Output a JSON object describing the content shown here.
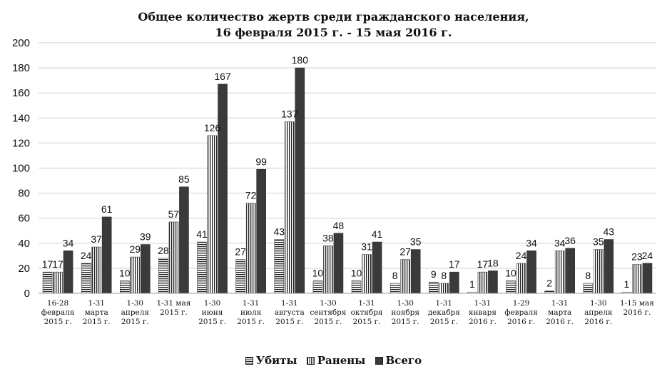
{
  "chart_data": {
    "type": "bar",
    "title_line1": "Общее количество жертв среди гражданского населения,",
    "title_line2": "16 февраля 2015 г. - 15 мая 2016 г.",
    "ylim": [
      0,
      200
    ],
    "yticks": [
      0,
      20,
      40,
      60,
      80,
      100,
      120,
      140,
      160,
      180,
      200
    ],
    "grid": true,
    "legend_position": "bottom",
    "categories": [
      [
        "16-28",
        "февраля",
        "2015 г."
      ],
      [
        "1-31",
        "марта",
        "2015 г."
      ],
      [
        "1-30",
        "апреля",
        "2015 г."
      ],
      [
        "1-31 мая",
        "2015 г."
      ],
      [
        "1-30",
        "июня",
        "2015 г."
      ],
      [
        "1-31",
        "июля",
        "2015 г."
      ],
      [
        "1-31",
        "августа",
        "2015 г."
      ],
      [
        "1-30",
        "сентября",
        "2015 г."
      ],
      [
        "1-31",
        "октября",
        "2015 г."
      ],
      [
        "1-30",
        "ноября",
        "2015 г."
      ],
      [
        "1-31",
        "декабря",
        "2015 г."
      ],
      [
        "1-31",
        "января",
        "2016 г."
      ],
      [
        "1-29",
        "февраля",
        "2016 г."
      ],
      [
        "1-31",
        "марта",
        "2016 г."
      ],
      [
        "1-30",
        "апреля",
        "2016 г."
      ],
      [
        "1-15 мая",
        "2016 г."
      ]
    ],
    "series": [
      {
        "name": "Убиты",
        "values": [
          17,
          24,
          10,
          28,
          41,
          27,
          43,
          10,
          10,
          8,
          9,
          1,
          10,
          2,
          8,
          1
        ]
      },
      {
        "name": "Ранены",
        "values": [
          17,
          37,
          29,
          57,
          126,
          72,
          137,
          38,
          31,
          27,
          8,
          17,
          24,
          34,
          35,
          23
        ]
      },
      {
        "name": "Всего",
        "values": [
          34,
          61,
          39,
          85,
          167,
          99,
          180,
          48,
          41,
          35,
          17,
          18,
          34,
          36,
          43,
          24
        ]
      }
    ]
  },
  "legend": {
    "killed": "Убиты",
    "wounded": "Ранены",
    "total": "Всего"
  }
}
